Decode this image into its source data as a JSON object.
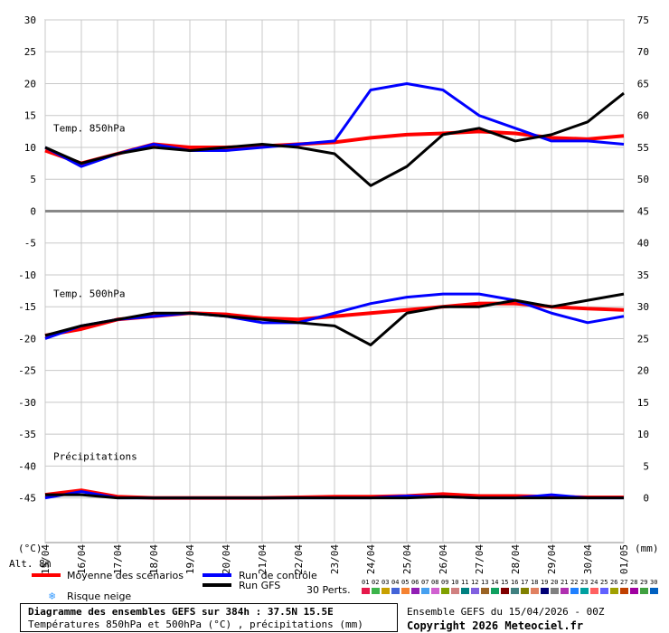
{
  "chart_data": {
    "type": "line",
    "title": "Diagramme des ensembles GEFS sur 384h : 37.5N 15.5E",
    "subtitle": "Températures 850hPa et 500hPa (°C) , précipitations (mm)",
    "x_ticks": [
      "15/04",
      "16/04",
      "17/04",
      "18/04",
      "19/04",
      "20/04",
      "21/04",
      "22/04",
      "23/04",
      "24/04",
      "25/04",
      "26/04",
      "27/04",
      "28/04",
      "29/04",
      "30/04",
      "01/05"
    ],
    "y_left_ticks": [
      "30",
      "25",
      "20",
      "15",
      "10",
      "5",
      "0",
      "-5",
      "-10",
      "-15",
      "-20",
      "-25",
      "-30",
      "-35",
      "-40",
      "-45"
    ],
    "y_right_ticks": [
      "75",
      "70",
      "65",
      "60",
      "55",
      "50",
      "45",
      "40",
      "35",
      "30",
      "25",
      "20",
      "15",
      "10",
      "5",
      "0"
    ],
    "y_left_unit": "(°C)",
    "y_right_unit": "(mm)",
    "x_axis_left_label": "Alt. 8m",
    "panels": [
      {
        "label": "Temp. 850hPa"
      },
      {
        "label": "Temp. 500hPa"
      },
      {
        "label": "Précipitations"
      }
    ],
    "series": [
      {
        "name": "Moyenne des scénarios",
        "color": "#ff0000",
        "t850": [
          9.5,
          7.5,
          9,
          10.5,
          10,
          10,
          10.2,
          10.5,
          10.8,
          11.5,
          12,
          12.2,
          12.5,
          12.2,
          11.5,
          11.3,
          11.8
        ],
        "t500": [
          -19.5,
          -18.5,
          -17,
          -16.5,
          -16,
          -16.2,
          -16.8,
          -17,
          -16.5,
          -16,
          -15.5,
          -15,
          -14.5,
          -14.5,
          -15,
          -15.3,
          -15.5
        ],
        "precip": [
          0.5,
          1.2,
          0.2,
          0,
          0,
          0,
          0,
          0.1,
          0.2,
          0.2,
          0.3,
          0.6,
          0.3,
          0.3,
          0.2,
          0.1,
          0.1
        ]
      },
      {
        "name": "Run de contrôle",
        "color": "#0000ff",
        "t850": [
          10,
          7,
          9,
          10.5,
          9.5,
          9.5,
          10,
          10.5,
          11,
          19,
          20,
          19,
          15,
          13,
          11,
          11,
          10.5
        ],
        "t500": [
          -20,
          -18,
          -17,
          -16.5,
          -16,
          -16.5,
          -17.5,
          -17.5,
          -16,
          -14.5,
          -13.5,
          -13,
          -13,
          -14,
          -16,
          -17.5,
          -16.5
        ],
        "precip": [
          0,
          1,
          0,
          0,
          0,
          0,
          0,
          0,
          0,
          0,
          0.3,
          0.2,
          0,
          0,
          0.5,
          0,
          0
        ]
      },
      {
        "name": "Run GFS",
        "color": "#000000",
        "t850": [
          10,
          7.5,
          9,
          10,
          9.5,
          10,
          10.5,
          10,
          9,
          4,
          7,
          12,
          13,
          11,
          12,
          14,
          18.5
        ],
        "t500": [
          -19.5,
          -18,
          -17,
          -16,
          -16,
          -16.5,
          -17,
          -17.5,
          -18,
          -21,
          -16,
          -15,
          -15,
          -14,
          -15,
          -14,
          -13
        ],
        "precip": [
          0.5,
          0.5,
          0,
          0,
          0,
          0,
          0,
          0,
          0,
          0,
          0,
          0.2,
          0,
          0,
          0,
          0,
          0
        ]
      }
    ],
    "perturbations_count": "30 Perts.",
    "perturbation_labels": [
      "01",
      "02",
      "03",
      "04",
      "05",
      "06",
      "07",
      "08",
      "09",
      "10",
      "11",
      "12",
      "13",
      "14",
      "15",
      "16",
      "17",
      "18",
      "19",
      "20",
      "21",
      "22",
      "23",
      "24",
      "25",
      "26",
      "27",
      "28",
      "29",
      "30"
    ],
    "perturbation_colors": [
      "#e6194b",
      "#3cb44b",
      "#c8a000",
      "#4363d8",
      "#f58231",
      "#911eb4",
      "#46a0f0",
      "#d060d0",
      "#80a000",
      "#d08080",
      "#008080",
      "#8060e0",
      "#9a6324",
      "#10a060",
      "#800000",
      "#408080",
      "#808000",
      "#e08060",
      "#000075",
      "#808080",
      "#b030b0",
      "#2080ff",
      "#00a0a0",
      "#ff6060",
      "#6060ff",
      "#a0a000",
      "#c04000",
      "#a000a0",
      "#40a040",
      "#0060c0"
    ],
    "grid": true
  },
  "legend": {
    "mean": "Moyenne des scénarios",
    "control": "Run de contrôle",
    "gfs": "Run GFS",
    "snow": "Risque neige",
    "perts": "30 Perts."
  },
  "footer": {
    "title": "Diagramme des ensembles GEFS sur 384h : 37.5N 15.5E",
    "subtitle": "Températures 850hPa et 500hPa (°C) , précipitations (mm)",
    "run": "Ensemble GEFS du 15/04/2026 - 00Z",
    "copyright": "Copyright 2026 Meteociel.fr"
  }
}
